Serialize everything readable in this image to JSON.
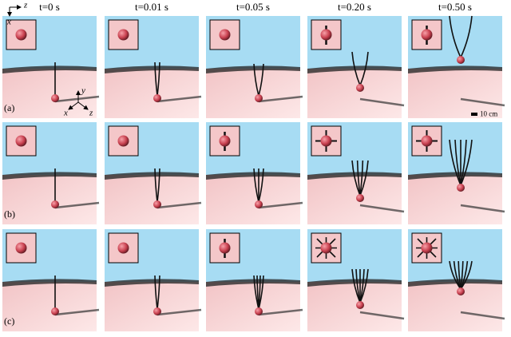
{
  "columns": [
    "t=0 s",
    "t=0.01 s",
    "t=0.05 s",
    "t=0.20 s",
    "t=0.50 s"
  ],
  "rows": [
    {
      "label": "(a)"
    },
    {
      "label": "(b)"
    },
    {
      "label": "(c)"
    }
  ],
  "inset_axes": {
    "horizontal": "z",
    "vertical": "x"
  },
  "scene_axes": {
    "up": "y",
    "left": "x",
    "right": "z"
  },
  "scale_bar": "10 cm"
}
